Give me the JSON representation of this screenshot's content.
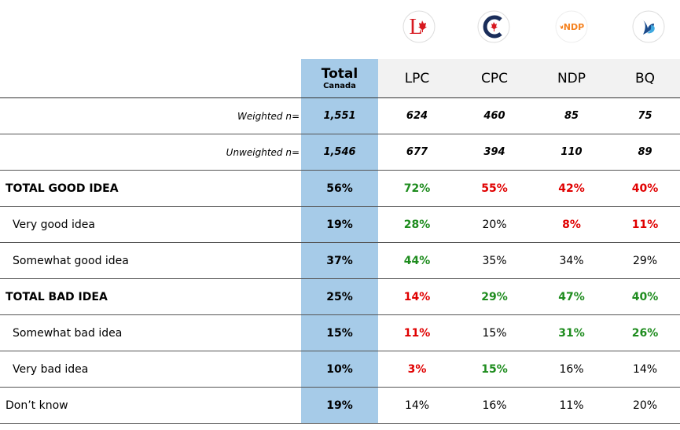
{
  "header": {
    "total": "Total",
    "total_sub": "Canada",
    "parties": [
      "LPC",
      "CPC",
      "NDP",
      "BQ"
    ],
    "logo_texts": {
      "lpc": "L",
      "ndp": "NDP"
    }
  },
  "table": {
    "rows": [
      {
        "label": "Weighted n=",
        "style": "base",
        "cells": [
          "1,551",
          "624",
          "460",
          "85",
          "75"
        ],
        "colors": [
          "#000",
          "#000",
          "#000",
          "#000"
        ]
      },
      {
        "label": "Unweighted n=",
        "style": "base",
        "cells": [
          "1,546",
          "677",
          "394",
          "110",
          "89"
        ],
        "colors": [
          "#000",
          "#000",
          "#000",
          "#000"
        ]
      },
      {
        "label": "TOTAL GOOD IDEA",
        "style": "bold",
        "cells": [
          "56%",
          "72%",
          "55%",
          "42%",
          "40%"
        ],
        "colors": [
          "#1e8c1e",
          "#e00000",
          "#e00000",
          "#e00000"
        ]
      },
      {
        "label": "Very good idea",
        "style": "indent",
        "cells": [
          "19%",
          "28%",
          "20%",
          "8%",
          "11%"
        ],
        "colors": [
          "#1e8c1e",
          "#000",
          "#e00000",
          "#e00000"
        ]
      },
      {
        "label": "Somewhat good idea",
        "style": "indent",
        "cells": [
          "37%",
          "44%",
          "35%",
          "34%",
          "29%"
        ],
        "colors": [
          "#1e8c1e",
          "#000",
          "#000",
          "#000"
        ]
      },
      {
        "label": "TOTAL BAD IDEA",
        "style": "bold",
        "cells": [
          "25%",
          "14%",
          "29%",
          "47%",
          "40%"
        ],
        "colors": [
          "#e00000",
          "#1e8c1e",
          "#1e8c1e",
          "#1e8c1e"
        ]
      },
      {
        "label": "Somewhat bad idea",
        "style": "indent",
        "cells": [
          "15%",
          "11%",
          "15%",
          "31%",
          "26%"
        ],
        "colors": [
          "#e00000",
          "#000",
          "#1e8c1e",
          "#1e8c1e"
        ]
      },
      {
        "label": "Very bad idea",
        "style": "indent",
        "cells": [
          "10%",
          "3%",
          "15%",
          "16%",
          "14%"
        ],
        "colors": [
          "#e00000",
          "#1e8c1e",
          "#000",
          "#000"
        ]
      },
      {
        "label": "Don’t know",
        "style": "plain",
        "cells": [
          "19%",
          "14%",
          "16%",
          "11%",
          "20%"
        ],
        "colors": [
          "#000",
          "#000",
          "#000",
          "#000"
        ]
      }
    ]
  }
}
